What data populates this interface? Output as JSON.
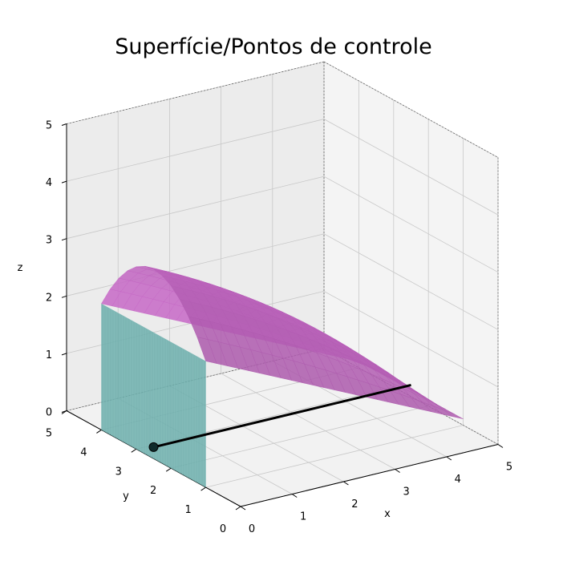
{
  "chart_data": {
    "type": "3d-surface",
    "title": "Superfície/Pontos de controle",
    "xlabel": "x",
    "ylabel": "y",
    "zlabel": "z",
    "xlim": [
      0,
      5
    ],
    "ylim": [
      0,
      5
    ],
    "zlim": [
      0,
      5
    ],
    "xticks": [
      "0",
      "1",
      "2",
      "3",
      "4",
      "5"
    ],
    "yticks": [
      "0",
      "1",
      "2",
      "3",
      "4",
      "5"
    ],
    "zticks": [
      "0",
      "1",
      "2",
      "3",
      "4",
      "5"
    ],
    "grid": true,
    "surfaces": [
      {
        "name": "",
        "kind": "arch",
        "x_range": [
          0,
          5
        ],
        "y_range": [
          1,
          4
        ],
        "z_base": 2.2,
        "z_peak": 3.3,
        "color": "#b65fb6"
      },
      {
        "name": "",
        "kind": "wall",
        "x_at": 0,
        "y_range": [
          1,
          4
        ],
        "z_range": [
          0,
          2.2
        ],
        "color": "#6aadaa"
      }
    ],
    "control_polygon": {
      "color": "#000000",
      "points": [
        {
          "x": 0,
          "y": 2.5,
          "z": 0.2
        },
        {
          "x": 5,
          "y": 2.5,
          "z": 0.2
        }
      ],
      "marker_index": 0
    }
  }
}
